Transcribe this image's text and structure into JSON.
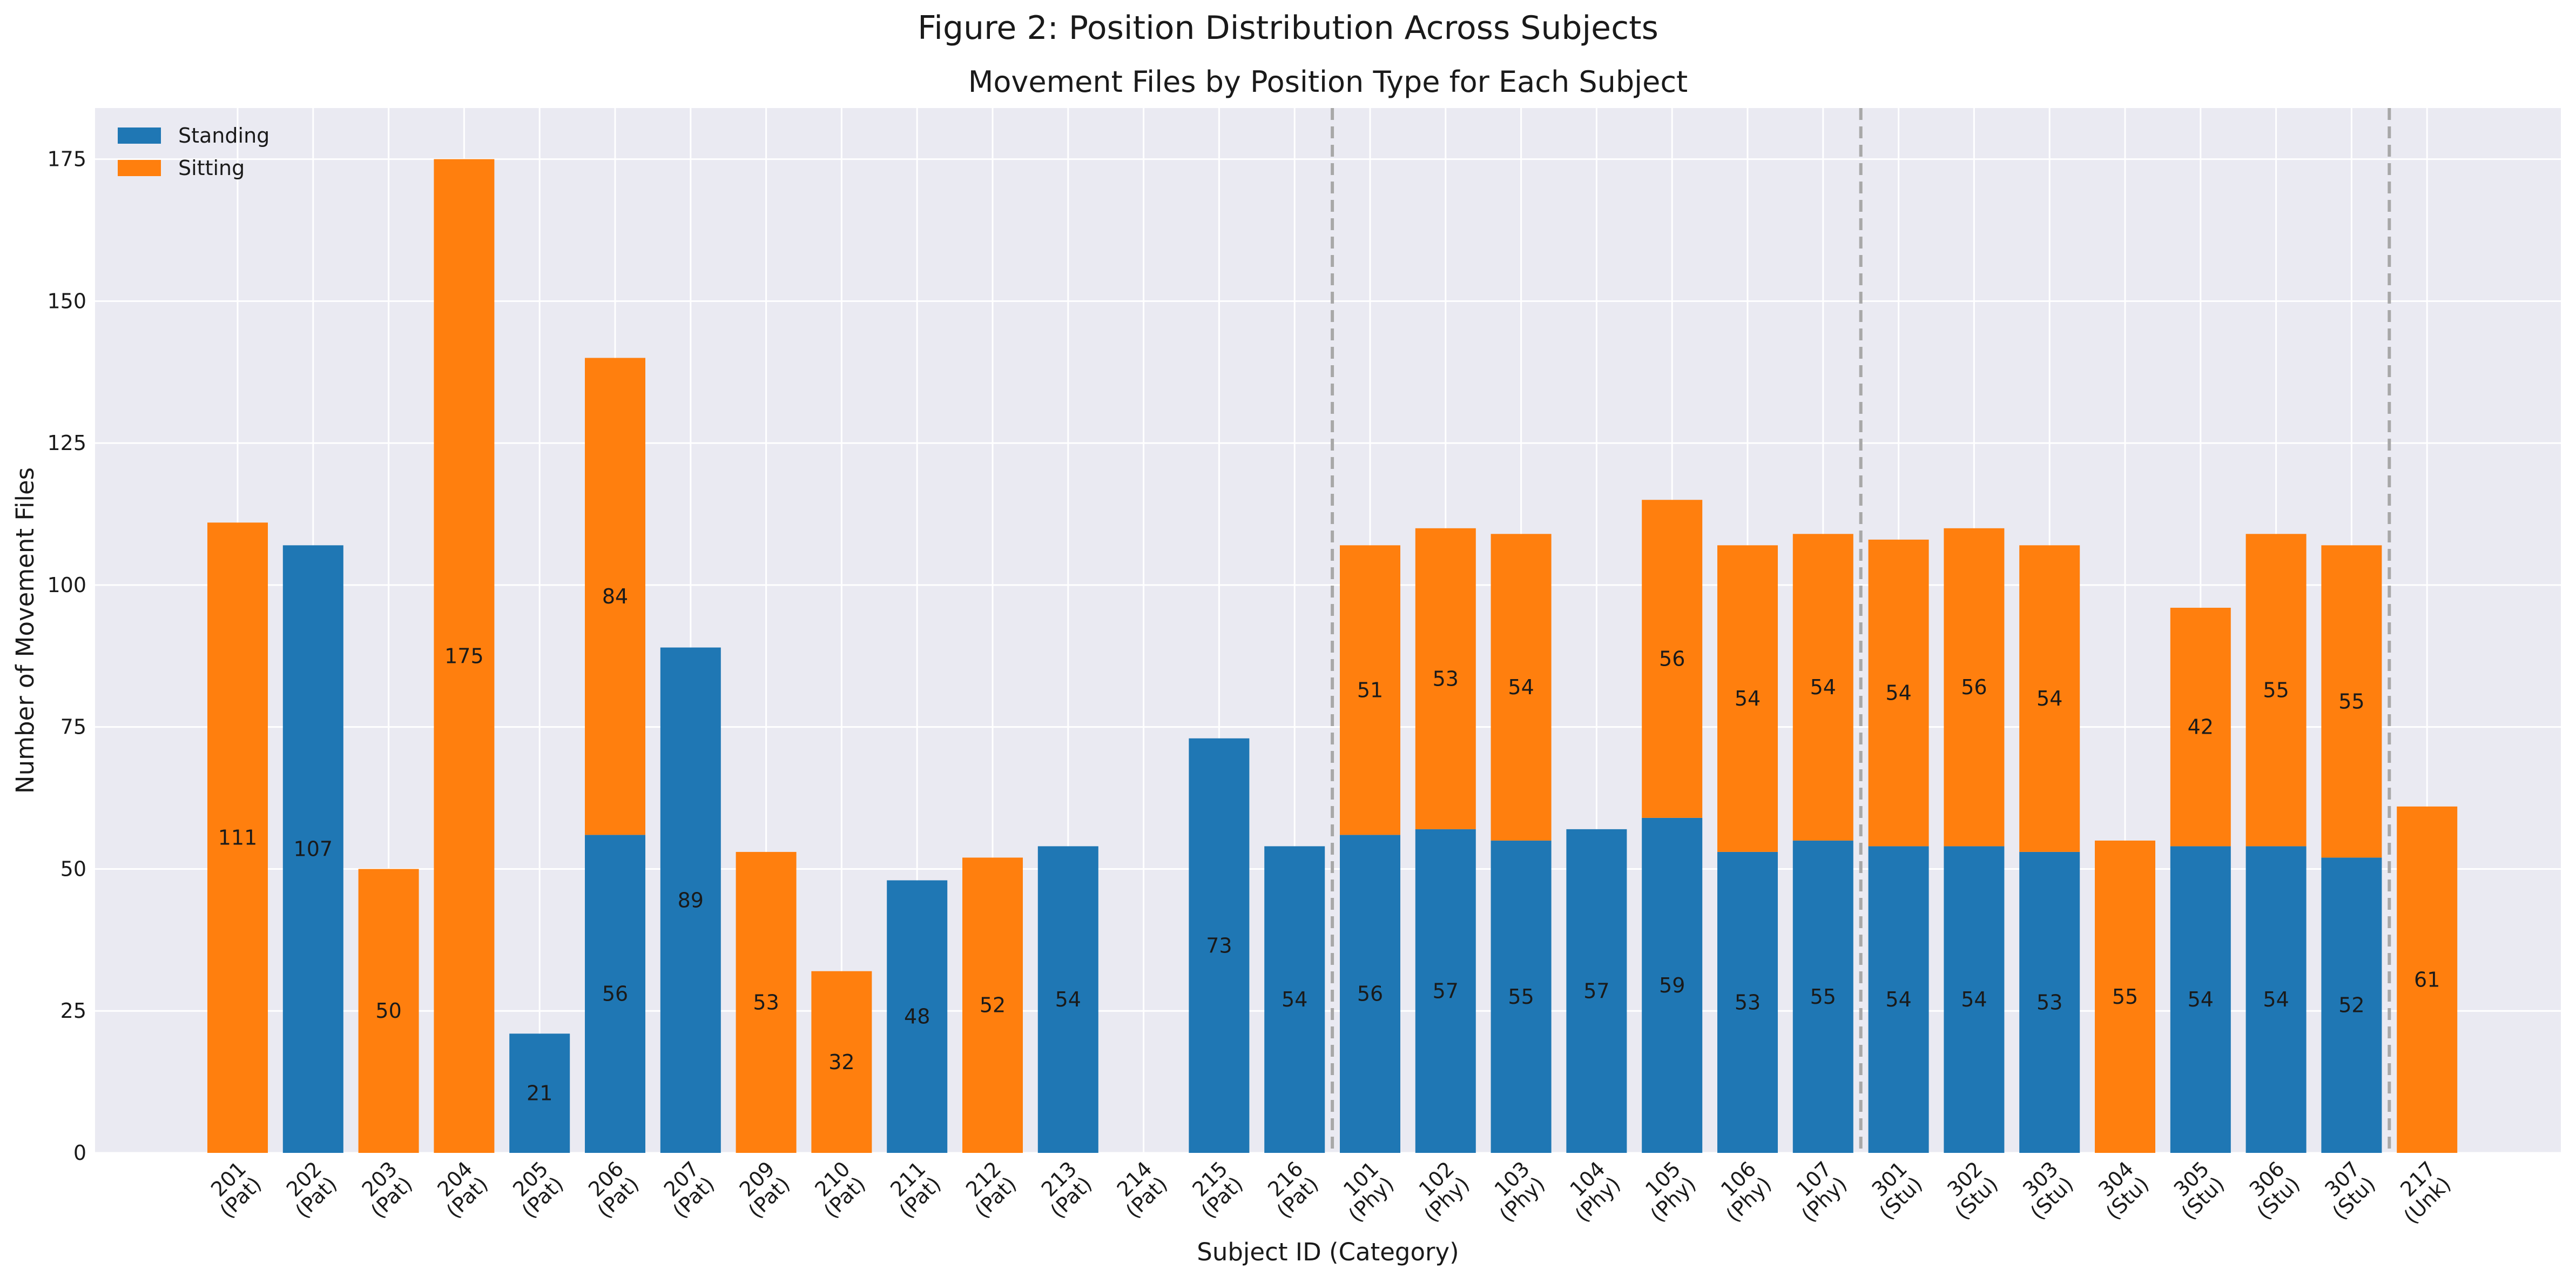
{
  "suptitle": "Figure 2: Position Distribution Across Subjects",
  "chart_data": {
    "type": "bar",
    "stacked": true,
    "title": "Movement Files by Position Type for Each Subject",
    "xlabel": "Subject ID (Category)",
    "ylabel": "Number of Movement Files",
    "ylim": [
      0,
      184
    ],
    "yticks": [
      0,
      25,
      50,
      75,
      100,
      125,
      150,
      175
    ],
    "grid": true,
    "legend_position": "top-left",
    "categories": [
      [
        "201",
        "(Pat)"
      ],
      [
        "202",
        "(Pat)"
      ],
      [
        "203",
        "(Pat)"
      ],
      [
        "204",
        "(Pat)"
      ],
      [
        "205",
        "(Pat)"
      ],
      [
        "206",
        "(Pat)"
      ],
      [
        "207",
        "(Pat)"
      ],
      [
        "209",
        "(Pat)"
      ],
      [
        "210",
        "(Pat)"
      ],
      [
        "211",
        "(Pat)"
      ],
      [
        "212",
        "(Pat)"
      ],
      [
        "213",
        "(Pat)"
      ],
      [
        "214",
        "(Pat)"
      ],
      [
        "215",
        "(Pat)"
      ],
      [
        "216",
        "(Pat)"
      ],
      [
        "101",
        "(Phy)"
      ],
      [
        "102",
        "(Phy)"
      ],
      [
        "103",
        "(Phy)"
      ],
      [
        "104",
        "(Phy)"
      ],
      [
        "105",
        "(Phy)"
      ],
      [
        "106",
        "(Phy)"
      ],
      [
        "107",
        "(Phy)"
      ],
      [
        "301",
        "(Stu)"
      ],
      [
        "302",
        "(Stu)"
      ],
      [
        "303",
        "(Stu)"
      ],
      [
        "304",
        "(Stu)"
      ],
      [
        "305",
        "(Stu)"
      ],
      [
        "306",
        "(Stu)"
      ],
      [
        "307",
        "(Stu)"
      ],
      [
        "217",
        "(Unk)"
      ]
    ],
    "series": [
      {
        "name": "Standing",
        "color": "#1f77b4",
        "values": [
          0,
          107,
          0,
          0,
          21,
          56,
          89,
          0,
          0,
          48,
          0,
          54,
          0,
          73,
          54,
          56,
          57,
          55,
          57,
          59,
          53,
          55,
          54,
          54,
          53,
          0,
          54,
          54,
          52,
          0
        ]
      },
      {
        "name": "Sitting",
        "color": "#ff7f0e",
        "values": [
          111,
          0,
          50,
          175,
          0,
          84,
          0,
          53,
          32,
          0,
          52,
          0,
          0,
          0,
          0,
          51,
          53,
          54,
          0,
          56,
          54,
          54,
          54,
          56,
          54,
          55,
          42,
          55,
          55,
          61
        ]
      }
    ],
    "group_dividers_after": [
      14,
      21,
      28
    ]
  }
}
